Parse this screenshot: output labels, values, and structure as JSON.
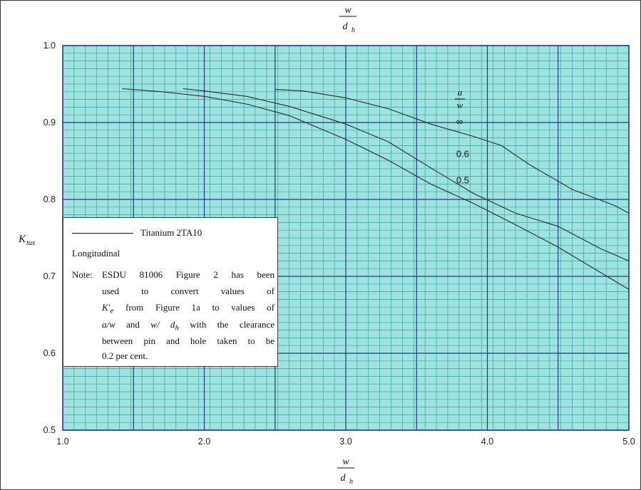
{
  "colors": {
    "background": "#9fe3e0",
    "minor_grid": "#3aa0a3",
    "major_grid": "#1f3a86",
    "curve": "#2a2a2a"
  },
  "chart_data": {
    "type": "line",
    "title": "",
    "xlabel": {
      "numerator": "w",
      "denominator": "d",
      "subscript": "h"
    },
    "ylabel": {
      "main": "K",
      "subscript": "tux"
    },
    "xlim": [
      1.0,
      5.0
    ],
    "ylim": [
      0.5,
      1.0
    ],
    "x_ticks": [
      "1.0",
      "2.0",
      "3.0",
      "4.0",
      "5.0"
    ],
    "y_ticks": [
      "0.5",
      "0.6",
      "0.7",
      "0.8",
      "0.9",
      "1.0"
    ],
    "grid": true,
    "parameter_label": {
      "numerator": "a",
      "denominator": "w"
    },
    "series": [
      {
        "name": "∞",
        "x": [
          2.5,
          2.7,
          3.0,
          3.3,
          3.6,
          3.9,
          4.1,
          4.3,
          4.6,
          4.9,
          5.0
        ],
        "y": [
          0.943,
          0.941,
          0.932,
          0.918,
          0.898,
          0.882,
          0.87,
          0.845,
          0.813,
          0.792,
          0.782
        ]
      },
      {
        "name": "0.6",
        "x": [
          1.85,
          2.0,
          2.3,
          2.6,
          3.0,
          3.3,
          3.6,
          3.9,
          4.2,
          4.5,
          4.8,
          5.0
        ],
        "y": [
          0.944,
          0.941,
          0.934,
          0.921,
          0.898,
          0.875,
          0.841,
          0.808,
          0.782,
          0.765,
          0.736,
          0.72
        ]
      },
      {
        "name": "0.5",
        "x": [
          1.42,
          1.7,
          2.0,
          2.3,
          2.6,
          3.0,
          3.3,
          3.6,
          3.9,
          4.2,
          4.5,
          4.8,
          5.0
        ],
        "y": [
          0.944,
          0.94,
          0.934,
          0.924,
          0.909,
          0.878,
          0.851,
          0.82,
          0.795,
          0.767,
          0.738,
          0.705,
          0.683
        ]
      }
    ]
  },
  "legend": {
    "series_label": "Titanium 2TA10",
    "orientation": "Longitudinal",
    "note_head": "Note:",
    "note_lines": [
      "ESDU 81006 Figure 2 has been",
      "used to convert values of",
      "from Figure 1a to values of",
      "with the clearance",
      "between pin and hole taken to be",
      "0.2 per cent."
    ],
    "symbol_ke": "K′",
    "symbol_ke_sub": "e",
    "symbol_aw": "a/w",
    "symbol_and": "and",
    "symbol_wdh": "w/ d",
    "symbol_wdh_sub": "h"
  }
}
